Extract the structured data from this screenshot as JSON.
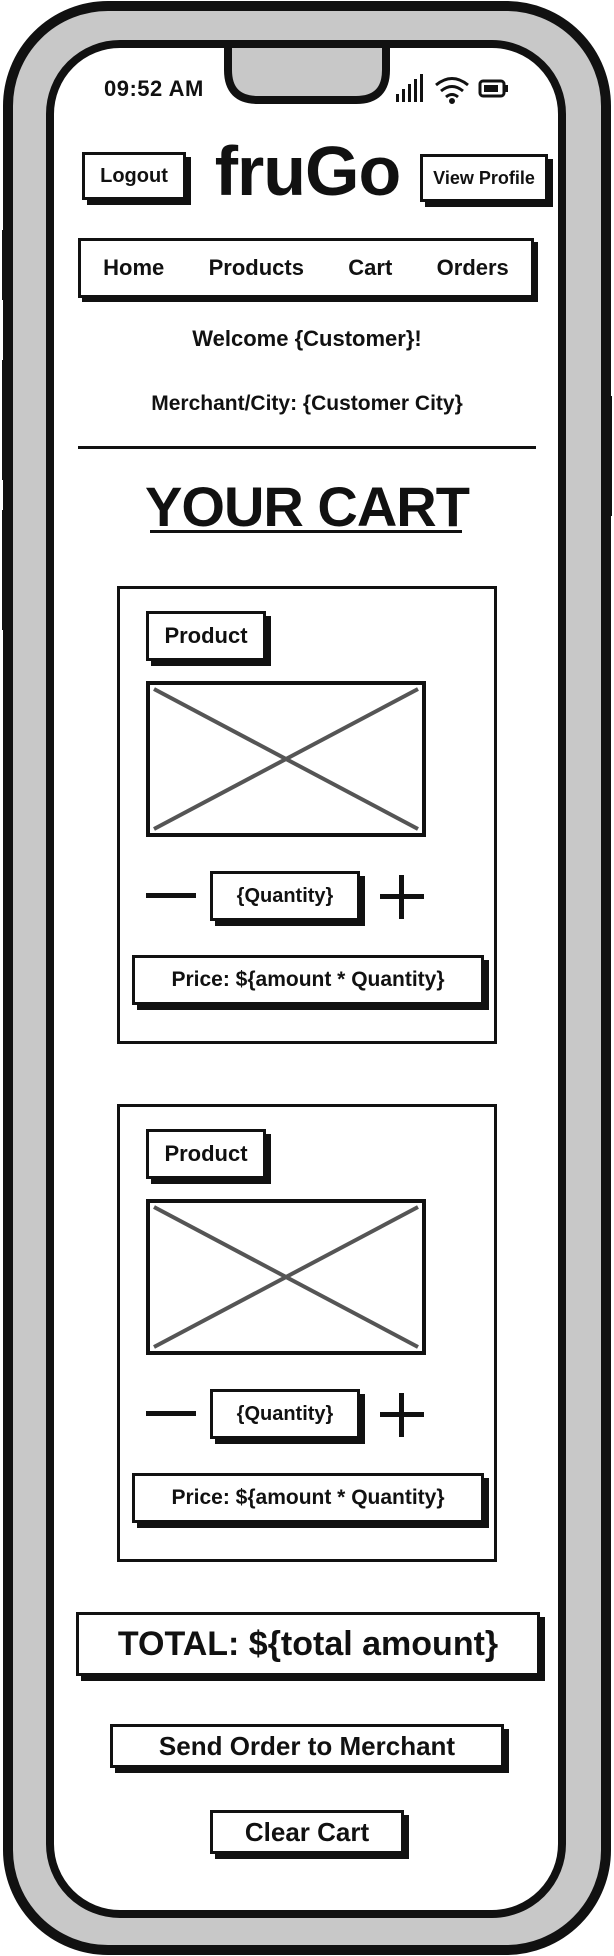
{
  "status": {
    "time": "09:52 AM"
  },
  "header": {
    "logout_label": "Logout",
    "logo": "fruGo",
    "view_profile_label": "View Profile"
  },
  "nav": {
    "items": [
      {
        "label": "Home"
      },
      {
        "label": "Products"
      },
      {
        "label": "Cart"
      },
      {
        "label": "Orders"
      }
    ]
  },
  "welcome": {
    "text": "Welcome {Customer}!",
    "merchant_city": "Merchant/City: {Customer City}"
  },
  "page": {
    "title": "YOUR CART"
  },
  "cart": {
    "items": [
      {
        "product_label": "Product",
        "quantity": "{Quantity}",
        "price": "Price: ${amount * Quantity}"
      },
      {
        "product_label": "Product",
        "quantity": "{Quantity}",
        "price": "Price: ${amount * Quantity}"
      }
    ],
    "total": "TOTAL: ${total amount}",
    "send_order_label": "Send Order to Merchant",
    "clear_cart_label": "Clear Cart"
  },
  "colors": {
    "outline": "#111111",
    "phone_frame": "#c8c8c8",
    "image_cross": "#555555",
    "background": "#ffffff"
  }
}
